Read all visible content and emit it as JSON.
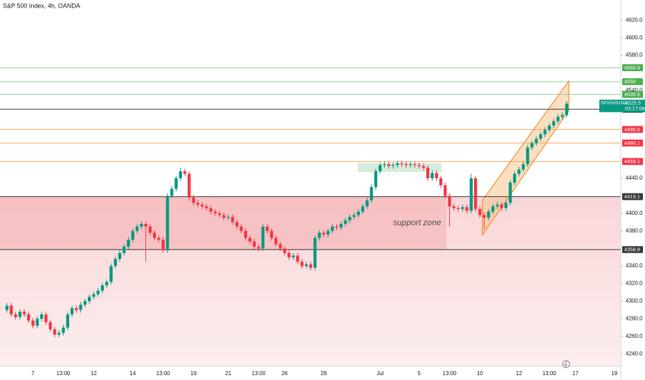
{
  "chart_data": {
    "type": "candlestick",
    "title": "S&P 500 Index, 4h, OANDA",
    "up_color": "#089981",
    "down_color": "#f23645",
    "ylim": [
      4226,
      4643
    ],
    "yticks": [
      {
        "value": 4240,
        "label": "4240.0"
      },
      {
        "value": 4260,
        "label": "4260.0"
      },
      {
        "value": 4280,
        "label": "4280.0"
      },
      {
        "value": 4300,
        "label": "4300.0"
      },
      {
        "value": 4320,
        "label": "4320.0"
      },
      {
        "value": 4340,
        "label": "4340.0"
      },
      {
        "value": 4380,
        "label": "4380.0"
      },
      {
        "value": 4400,
        "label": "4400.0"
      },
      {
        "value": 4440,
        "label": "4440.0"
      },
      {
        "value": 4540,
        "label": "4540.0"
      },
      {
        "value": 4580,
        "label": "4580.0"
      },
      {
        "value": 4600,
        "label": "4600.0"
      },
      {
        "value": 4620,
        "label": "4620.0"
      }
    ],
    "categories": [
      null,
      null,
      null,
      null,
      null,
      null,
      "7",
      null,
      null,
      null,
      null,
      null,
      null,
      "13:00",
      null,
      null,
      null,
      null,
      null,
      null,
      "12",
      null,
      null,
      null,
      null,
      null,
      null,
      null,
      null,
      "14",
      null,
      null,
      null,
      null,
      null,
      null,
      "13:00",
      null,
      null,
      null,
      null,
      null,
      null,
      "19",
      null,
      null,
      null,
      null,
      null,
      null,
      null,
      "21",
      null,
      null,
      null,
      null,
      null,
      null,
      "13:00",
      null,
      null,
      null,
      null,
      null,
      "26",
      null,
      null,
      null,
      null,
      null,
      null,
      null,
      null,
      "28",
      null,
      null,
      null,
      null,
      null,
      null,
      null,
      null,
      null,
      null,
      null,
      null,
      "Jul",
      null,
      null,
      null,
      null,
      null,
      null,
      null,
      null,
      "5",
      null,
      null,
      null,
      null,
      null,
      null,
      "13:00",
      null,
      null,
      null,
      null,
      null,
      null,
      "10",
      null,
      null,
      null,
      null,
      null,
      null,
      null,
      null,
      "12",
      null,
      null,
      null,
      null,
      null,
      null,
      "13:00",
      null,
      null,
      null,
      null,
      null,
      "17",
      null,
      null,
      null,
      null,
      null,
      null,
      null,
      null,
      "19"
    ],
    "open": [
      4290,
      4295,
      4285,
      4282,
      4288,
      4285,
      4278,
      4272,
      4280,
      4285,
      4276,
      4268,
      4262,
      4264,
      4270,
      4285,
      4292,
      4290,
      4296,
      4300,
      4305,
      4308,
      4312,
      4318,
      4322,
      4340,
      4348,
      4355,
      4362,
      4370,
      4380,
      4385,
      4388,
      4385,
      4378,
      4372,
      4370,
      4358,
      4420,
      4428,
      4440,
      4448,
      4445,
      4418,
      4412,
      4410,
      4408,
      4406,
      4402,
      4400,
      4398,
      4395,
      4396,
      4390,
      4385,
      4380,
      4372,
      4368,
      4362,
      4360,
      4385,
      4380,
      4372,
      4365,
      4360,
      4355,
      4350,
      4352,
      4345,
      4340,
      4342,
      4338,
      4372,
      4378,
      4376,
      4380,
      4385,
      4384,
      4388,
      4392,
      4396,
      4398,
      4402,
      4408,
      4415,
      4430,
      4448,
      4455,
      4456,
      4454,
      4455,
      4457,
      4456,
      4455,
      4456,
      4455,
      4454,
      4452,
      4440,
      4446,
      4440,
      4432,
      4420,
      4408,
      4406,
      4405,
      4407,
      4403,
      4440,
      4405,
      4398,
      4395,
      4402,
      4408,
      4410,
      4406,
      4412,
      4435,
      4445,
      4450,
      4456,
      4475,
      4480,
      4485,
      4490,
      4495,
      4500,
      4505,
      4510,
      4512,
      null,
      null,
      null,
      null,
      null,
      null,
      null,
      null,
      null,
      null,
      null
    ],
    "high": [
      4298,
      4298,
      4288,
      4291,
      4291,
      4288,
      4281,
      4283,
      4288,
      4288,
      4279,
      4271,
      4267,
      4273,
      4288,
      4295,
      4295,
      4299,
      4303,
      4308,
      4311,
      4315,
      4321,
      4325,
      4343,
      4351,
      4358,
      4365,
      4373,
      4383,
      4388,
      4391,
      4391,
      4388,
      4381,
      4375,
      4373,
      4423,
      4431,
      4443,
      4452,
      4451,
      4448,
      4421,
      4415,
      4413,
      4411,
      4409,
      4405,
      4403,
      4401,
      4399,
      4399,
      4393,
      4388,
      4383,
      4375,
      4371,
      4365,
      4388,
      4388,
      4383,
      4375,
      4368,
      4363,
      4358,
      4355,
      4355,
      4348,
      4345,
      4345,
      4375,
      4381,
      4381,
      4383,
      4388,
      4388,
      4391,
      4395,
      4399,
      4401,
      4405,
      4411,
      4418,
      4433,
      4451,
      4458,
      4459,
      4459,
      4458,
      4460,
      4460,
      4459,
      4459,
      4459,
      4458,
      4457,
      4455,
      4449,
      4449,
      4443,
      4435,
      4423,
      4411,
      4409,
      4410,
      4410,
      4445,
      4443,
      4408,
      4401,
      4405,
      4411,
      4413,
      4413,
      4415,
      4438,
      4448,
      4453,
      4459,
      4478,
      4483,
      4488,
      4493,
      4498,
      4503,
      4508,
      4513,
      4515,
      4528,
      null,
      null,
      null,
      null,
      null,
      null,
      null,
      null,
      null,
      null,
      null
    ],
    "low": [
      4287,
      4282,
      4279,
      4279,
      4282,
      4275,
      4269,
      4269,
      4277,
      4273,
      4265,
      4259,
      4259,
      4261,
      4267,
      4282,
      4287,
      4287,
      4293,
      4297,
      4302,
      4305,
      4309,
      4315,
      4319,
      4337,
      4345,
      4352,
      4359,
      4367,
      4377,
      4382,
      4345,
      4375,
      4369,
      4367,
      4355,
      4355,
      4417,
      4425,
      4437,
      4442,
      4415,
      4409,
      4407,
      4405,
      4403,
      4399,
      4397,
      4395,
      4392,
      4392,
      4387,
      4382,
      4377,
      4369,
      4365,
      4359,
      4357,
      4357,
      4377,
      4369,
      4362,
      4357,
      4352,
      4347,
      4347,
      4342,
      4337,
      4337,
      4335,
      4335,
      4369,
      4373,
      4373,
      4377,
      4381,
      4381,
      4385,
      4389,
      4393,
      4395,
      4399,
      4405,
      4412,
      4427,
      4445,
      4452,
      4451,
      4451,
      4452,
      4453,
      4452,
      4452,
      4452,
      4451,
      4449,
      4437,
      4437,
      4437,
      4429,
      4417,
      4385,
      4403,
      4402,
      4402,
      4400,
      4400,
      4402,
      4395,
      4382,
      4392,
      4399,
      4405,
      4403,
      4403,
      4409,
      4432,
      4442,
      4447,
      4453,
      4472,
      4477,
      4482,
      4487,
      4492,
      4497,
      4502,
      4507,
      4509,
      null,
      null,
      null,
      null,
      null,
      null,
      null,
      null,
      null,
      null,
      null
    ],
    "close": [
      4295,
      4285,
      4282,
      4288,
      4285,
      4278,
      4272,
      4280,
      4285,
      4276,
      4268,
      4262,
      4264,
      4270,
      4285,
      4292,
      4290,
      4296,
      4300,
      4305,
      4308,
      4312,
      4318,
      4322,
      4340,
      4348,
      4355,
      4362,
      4370,
      4380,
      4385,
      4388,
      4385,
      4378,
      4372,
      4370,
      4358,
      4420,
      4428,
      4440,
      4448,
      4445,
      4418,
      4412,
      4410,
      4408,
      4406,
      4402,
      4400,
      4398,
      4395,
      4396,
      4390,
      4385,
      4380,
      4372,
      4368,
      4362,
      4360,
      4385,
      4380,
      4372,
      4365,
      4360,
      4355,
      4350,
      4352,
      4345,
      4340,
      4342,
      4338,
      4372,
      4378,
      4376,
      4380,
      4385,
      4384,
      4388,
      4392,
      4396,
      4398,
      4402,
      4408,
      4415,
      4430,
      4448,
      4455,
      4456,
      4454,
      4455,
      4457,
      4456,
      4455,
      4456,
      4455,
      4454,
      4452,
      4440,
      4446,
      4440,
      4432,
      4420,
      4408,
      4406,
      4405,
      4407,
      4403,
      4440,
      4405,
      4398,
      4395,
      4402,
      4408,
      4410,
      4406,
      4412,
      4435,
      4445,
      4450,
      4456,
      4475,
      4480,
      4485,
      4490,
      4495,
      4500,
      4505,
      4510,
      4512,
      4525,
      null,
      null,
      null,
      null,
      null,
      null,
      null,
      null,
      null,
      null,
      null
    ],
    "levels": [
      {
        "value": 4565.9,
        "color": "#8bc98f",
        "label_color": "#4caf50"
      },
      {
        "value": 4550.0,
        "color": "#8bc98f",
        "label_color": "#4caf50"
      },
      {
        "value": 4535.5,
        "color": "#8bc98f",
        "label_color": "#4caf50"
      },
      {
        "value": 4518.6,
        "color": "#333333",
        "label_color": "#3a3a3a"
      },
      {
        "value": 4495.6,
        "color": "#f5a35a",
        "label_color": "#f23645"
      },
      {
        "value": 4480.1,
        "color": "#f5a35a",
        "label_color": "#f23645"
      },
      {
        "value": 4459.1,
        "color": "#f5a35a",
        "label_color": "#f23645"
      },
      {
        "value": 4419.1,
        "color": "#333333",
        "label_color": "#3a3a3a"
      },
      {
        "value": 4358.8,
        "color": "#333333",
        "label_color": "#3a3a3a"
      }
    ],
    "zone_label": "support zone",
    "symbol": "SPX500USD",
    "last_price": 4525.5,
    "countdown": "03:17:06"
  }
}
